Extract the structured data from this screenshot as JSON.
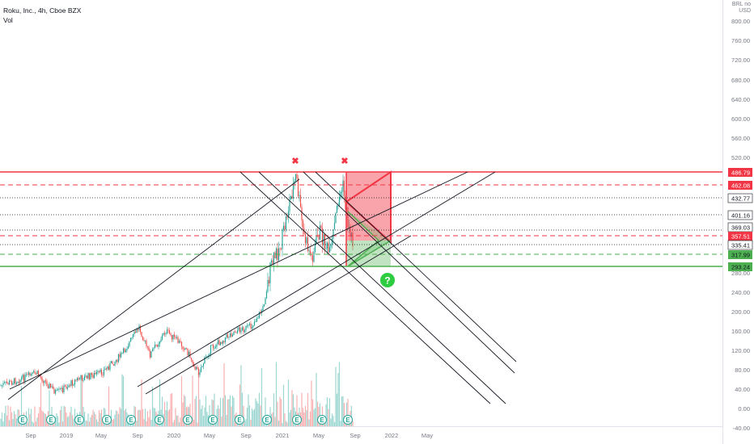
{
  "header": {
    "symbol_title": "Roku, Inc., 4h, Cboe BZX",
    "volume_label": "Vol",
    "currency_top": "BRL no",
    "currency": "USD"
  },
  "price_axis": {
    "ticks": [
      "800.00",
      "760.00",
      "720.00",
      "680.00",
      "640.00",
      "600.00",
      "560.00",
      "520.00",
      "280.00",
      "240.00",
      "200.00",
      "160.00",
      "120.00",
      "80.00",
      "40.00",
      "0.00",
      "-40.00"
    ],
    "levels": [
      {
        "label": "486.79",
        "color": "#f23645",
        "filled": true
      },
      {
        "label": "462.08",
        "color": "#f23645",
        "filled": true
      },
      {
        "label": "432.77",
        "color": "#131722",
        "filled": false
      },
      {
        "label": "401.16",
        "color": "#131722",
        "filled": false
      },
      {
        "label": "369.03",
        "color": "#131722",
        "filled": false
      },
      {
        "label": "357.51",
        "color": "#f23645",
        "filled": true
      },
      {
        "label": "335.41",
        "color": "#131722",
        "filled": false
      },
      {
        "label": "317.99",
        "color": "#4caf50",
        "filled": true
      },
      {
        "label": "293.24",
        "color": "#4caf50",
        "filled": true
      }
    ]
  },
  "time_axis": {
    "ticks": [
      "Sep",
      "2019",
      "May",
      "Sep",
      "2020",
      "May",
      "Sep",
      "2021",
      "May",
      "Sep",
      "2022",
      "May"
    ]
  },
  "annotations": {
    "x_marks": [
      "✖",
      "✖"
    ],
    "question": "?",
    "earnings_marker": "E"
  },
  "colors": {
    "up": "#26a69a",
    "down": "#ef5350",
    "resistance": "#f23645",
    "support": "#4caf50",
    "trendline": "#131722"
  }
}
